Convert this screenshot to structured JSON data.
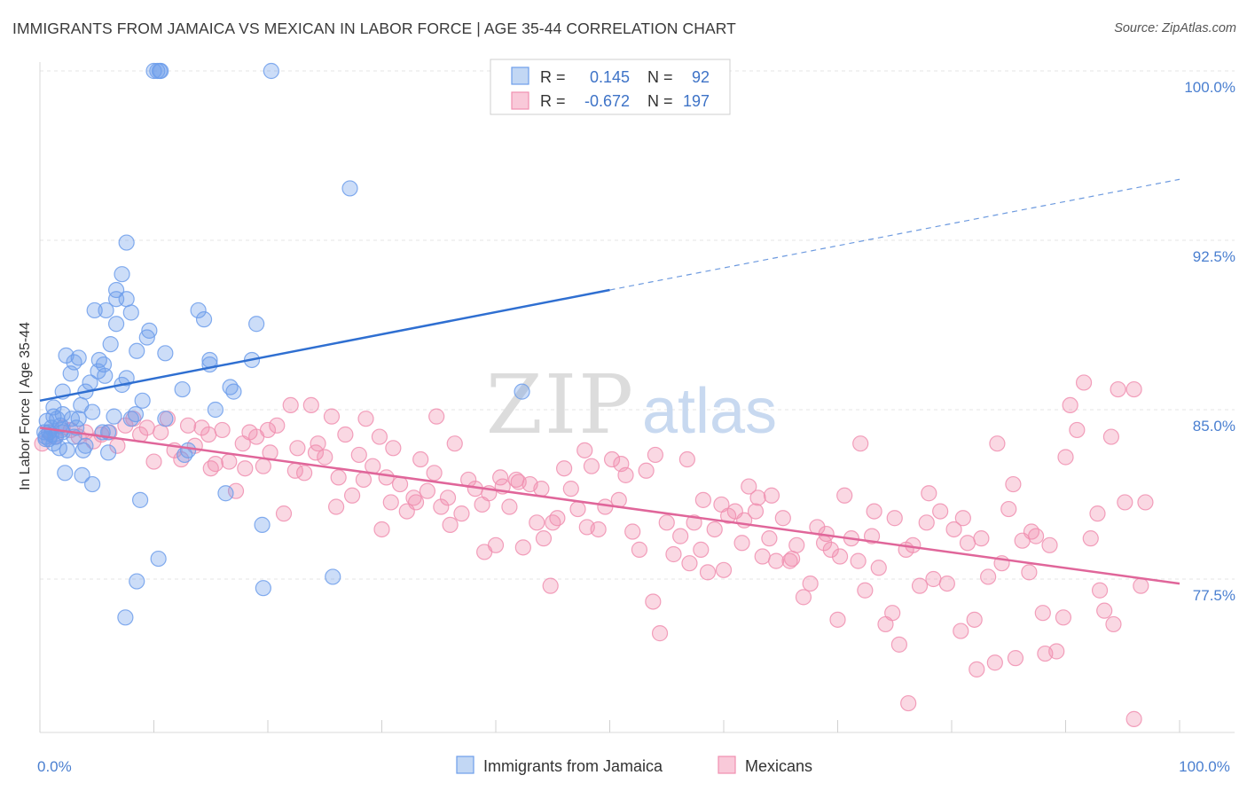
{
  "title": "IMMIGRANTS FROM JAMAICA VS MEXICAN IN LABOR FORCE | AGE 35-44 CORRELATION CHART",
  "source": "Source: ZipAtlas.com",
  "watermark": {
    "zip": "ZIP",
    "atlas": "atlas"
  },
  "chart_data": {
    "type": "scatter",
    "title": "IMMIGRANTS FROM JAMAICA VS MEXICAN IN LABOR FORCE | AGE 35-44 CORRELATION CHART",
    "xlabel": "",
    "ylabel": "In Labor Force | Age 35-44",
    "xlim": [
      0,
      100
    ],
    "ylim": [
      71.0,
      101.0
    ],
    "x_ticks": [
      0,
      100
    ],
    "x_tick_labels": [
      "0.0%",
      "100.0%"
    ],
    "y_ticks": [
      77.5,
      85.0,
      92.5,
      100.0
    ],
    "y_tick_labels": [
      "77.5%",
      "85.0%",
      "92.5%",
      "100.0%"
    ],
    "grid": true,
    "legend_position": "top-center",
    "colors": {
      "jamaica": "#6d9eeb",
      "jamaica_line": "#2f6fd1",
      "mexicans": "#f08fb0",
      "mexicans_line": "#e0669a"
    },
    "legend": [
      {
        "series": "Immigrants from Jamaica",
        "r_label": "R =",
        "r_value": "0.145",
        "n_label": "N =",
        "n_value": "92"
      },
      {
        "series": "Mexicans",
        "r_label": "R =",
        "r_value": "-0.672",
        "n_label": "N =",
        "n_value": "197"
      }
    ],
    "trend_lines": [
      {
        "series": "Immigrants from Jamaica",
        "solid": {
          "x": [
            0,
            50
          ],
          "y": [
            85.4,
            90.3
          ]
        },
        "dashed": {
          "x": [
            50,
            100
          ],
          "y": [
            90.3,
            95.2
          ]
        }
      },
      {
        "series": "Mexicans",
        "solid": {
          "x": [
            0,
            100
          ],
          "y": [
            84.2,
            77.3
          ]
        }
      }
    ],
    "series": [
      {
        "name": "Immigrants from Jamaica",
        "points": [
          [
            10.0,
            100.0
          ],
          [
            10.3,
            100.0
          ],
          [
            10.6,
            100.0
          ],
          [
            10.5,
            100.0
          ],
          [
            20.3,
            100.0
          ],
          [
            27.2,
            94.8
          ],
          [
            7.6,
            92.4
          ],
          [
            7.2,
            91.0
          ],
          [
            6.7,
            90.3
          ],
          [
            6.7,
            89.9
          ],
          [
            7.6,
            89.9
          ],
          [
            4.8,
            89.4
          ],
          [
            5.8,
            89.4
          ],
          [
            8.0,
            89.3
          ],
          [
            13.9,
            89.4
          ],
          [
            14.4,
            89.0
          ],
          [
            19.0,
            88.8
          ],
          [
            6.7,
            88.8
          ],
          [
            9.6,
            88.5
          ],
          [
            9.4,
            88.2
          ],
          [
            6.2,
            87.9
          ],
          [
            8.5,
            87.6
          ],
          [
            11.0,
            87.5
          ],
          [
            14.9,
            87.2
          ],
          [
            18.6,
            87.2
          ],
          [
            2.3,
            87.4
          ],
          [
            3.4,
            87.3
          ],
          [
            5.2,
            87.2
          ],
          [
            5.6,
            87.0
          ],
          [
            14.9,
            87.0
          ],
          [
            3.0,
            87.1
          ],
          [
            2.7,
            86.6
          ],
          [
            5.1,
            86.7
          ],
          [
            5.7,
            86.5
          ],
          [
            7.6,
            86.4
          ],
          [
            4.4,
            86.2
          ],
          [
            7.2,
            86.1
          ],
          [
            12.5,
            85.9
          ],
          [
            16.7,
            86.0
          ],
          [
            2.0,
            85.8
          ],
          [
            4.0,
            85.8
          ],
          [
            17.0,
            85.8
          ],
          [
            42.3,
            85.8
          ],
          [
            1.2,
            85.1
          ],
          [
            15.4,
            85.0
          ],
          [
            1.2,
            84.7
          ],
          [
            2.0,
            84.8
          ],
          [
            1.5,
            84.6
          ],
          [
            3.4,
            84.6
          ],
          [
            8.4,
            84.8
          ],
          [
            11.0,
            84.6
          ],
          [
            8.0,
            84.6
          ],
          [
            1.8,
            84.3
          ],
          [
            3.2,
            84.2
          ],
          [
            1.0,
            84.2
          ],
          [
            0.4,
            84.0
          ],
          [
            0.8,
            84.0
          ],
          [
            0.5,
            83.8
          ],
          [
            1.4,
            83.8
          ],
          [
            3.0,
            83.8
          ],
          [
            5.5,
            84.0
          ],
          [
            6.0,
            84.0
          ],
          [
            0.8,
            83.7
          ],
          [
            1.2,
            83.5
          ],
          [
            4.0,
            83.4
          ],
          [
            0.5,
            83.7
          ],
          [
            1.7,
            83.3
          ],
          [
            2.4,
            83.2
          ],
          [
            3.8,
            83.2
          ],
          [
            6.0,
            83.1
          ],
          [
            12.7,
            83.0
          ],
          [
            13.0,
            83.2
          ],
          [
            2.2,
            82.2
          ],
          [
            3.7,
            82.1
          ],
          [
            4.6,
            81.7
          ],
          [
            16.3,
            81.3
          ],
          [
            8.8,
            81.0
          ],
          [
            19.5,
            79.9
          ],
          [
            10.4,
            78.4
          ],
          [
            8.5,
            77.4
          ],
          [
            19.6,
            77.1
          ],
          [
            25.7,
            77.6
          ],
          [
            7.5,
            75.8
          ],
          [
            2.0,
            84.0
          ],
          [
            1.0,
            83.9
          ],
          [
            4.6,
            84.9
          ],
          [
            2.8,
            84.6
          ],
          [
            0.6,
            84.5
          ],
          [
            1.9,
            84.1
          ],
          [
            6.5,
            84.7
          ],
          [
            3.6,
            85.2
          ],
          [
            9.0,
            85.4
          ]
        ]
      },
      {
        "name": "Mexicans",
        "points": [
          [
            0.2,
            83.5
          ],
          [
            0.8,
            84.0
          ],
          [
            1.3,
            83.8
          ],
          [
            2.0,
            84.2
          ],
          [
            2.7,
            84.1
          ],
          [
            3.4,
            83.8
          ],
          [
            4.0,
            84.0
          ],
          [
            4.7,
            83.6
          ],
          [
            5.4,
            83.9
          ],
          [
            6.1,
            84.0
          ],
          [
            6.8,
            83.4
          ],
          [
            7.5,
            84.3
          ],
          [
            8.2,
            84.6
          ],
          [
            8.8,
            83.9
          ],
          [
            9.4,
            84.2
          ],
          [
            10.0,
            82.7
          ],
          [
            10.6,
            84.0
          ],
          [
            11.2,
            84.6
          ],
          [
            11.8,
            83.2
          ],
          [
            12.4,
            82.8
          ],
          [
            13.0,
            84.3
          ],
          [
            13.6,
            83.4
          ],
          [
            14.2,
            84.2
          ],
          [
            14.8,
            83.9
          ],
          [
            15.4,
            82.6
          ],
          [
            16.0,
            84.1
          ],
          [
            16.6,
            82.7
          ],
          [
            17.2,
            81.4
          ],
          [
            17.8,
            83.5
          ],
          [
            18.4,
            84.0
          ],
          [
            19.0,
            83.8
          ],
          [
            19.6,
            82.5
          ],
          [
            20.2,
            83.1
          ],
          [
            20.8,
            84.3
          ],
          [
            21.4,
            80.4
          ],
          [
            22.0,
            85.2
          ],
          [
            22.6,
            83.3
          ],
          [
            23.2,
            82.2
          ],
          [
            23.8,
            85.2
          ],
          [
            24.4,
            83.5
          ],
          [
            25.0,
            82.9
          ],
          [
            25.6,
            84.7
          ],
          [
            26.2,
            82.0
          ],
          [
            26.8,
            83.9
          ],
          [
            27.4,
            81.2
          ],
          [
            28.0,
            83.0
          ],
          [
            28.6,
            84.6
          ],
          [
            29.2,
            82.5
          ],
          [
            29.8,
            83.8
          ],
          [
            30.4,
            82.0
          ],
          [
            31.0,
            83.3
          ],
          [
            31.6,
            81.7
          ],
          [
            32.2,
            80.5
          ],
          [
            32.8,
            81.1
          ],
          [
            33.4,
            82.8
          ],
          [
            34.0,
            81.4
          ],
          [
            34.6,
            82.2
          ],
          [
            35.2,
            80.7
          ],
          [
            35.8,
            81.1
          ],
          [
            36.4,
            83.5
          ],
          [
            37.0,
            80.4
          ],
          [
            37.6,
            81.9
          ],
          [
            38.2,
            81.5
          ],
          [
            38.8,
            80.8
          ],
          [
            39.4,
            81.3
          ],
          [
            40.0,
            79.0
          ],
          [
            40.6,
            81.6
          ],
          [
            41.2,
            80.7
          ],
          [
            41.8,
            81.9
          ],
          [
            42.4,
            78.9
          ],
          [
            43.0,
            81.7
          ],
          [
            43.6,
            80.0
          ],
          [
            44.2,
            79.3
          ],
          [
            44.8,
            77.2
          ],
          [
            45.4,
            80.2
          ],
          [
            46.0,
            82.4
          ],
          [
            46.6,
            81.5
          ],
          [
            47.2,
            80.6
          ],
          [
            47.8,
            83.2
          ],
          [
            48.4,
            82.5
          ],
          [
            49.0,
            79.7
          ],
          [
            49.6,
            80.7
          ],
          [
            50.2,
            82.8
          ],
          [
            50.8,
            81.0
          ],
          [
            51.4,
            82.1
          ],
          [
            52.0,
            79.6
          ],
          [
            52.6,
            78.8
          ],
          [
            53.2,
            82.3
          ],
          [
            53.8,
            76.5
          ],
          [
            54.4,
            75.1
          ],
          [
            55.0,
            80.0
          ],
          [
            55.6,
            78.6
          ],
          [
            56.2,
            79.4
          ],
          [
            56.8,
            82.8
          ],
          [
            57.4,
            80.0
          ],
          [
            58.0,
            78.8
          ],
          [
            58.6,
            77.8
          ],
          [
            59.2,
            79.7
          ],
          [
            59.8,
            80.8
          ],
          [
            60.4,
            80.3
          ],
          [
            61.0,
            80.5
          ],
          [
            61.6,
            79.1
          ],
          [
            62.2,
            81.6
          ],
          [
            62.8,
            80.5
          ],
          [
            63.4,
            78.5
          ],
          [
            64.0,
            79.3
          ],
          [
            64.6,
            78.3
          ],
          [
            65.2,
            80.2
          ],
          [
            65.8,
            78.3
          ],
          [
            66.4,
            79.0
          ],
          [
            67.0,
            76.7
          ],
          [
            67.6,
            77.3
          ],
          [
            68.2,
            79.8
          ],
          [
            68.8,
            79.1
          ],
          [
            69.4,
            78.8
          ],
          [
            70.0,
            75.7
          ],
          [
            70.6,
            81.2
          ],
          [
            71.2,
            79.3
          ],
          [
            71.8,
            78.3
          ],
          [
            72.4,
            77.0
          ],
          [
            73.0,
            79.4
          ],
          [
            73.6,
            78.0
          ],
          [
            74.2,
            75.5
          ],
          [
            74.8,
            76.0
          ],
          [
            75.4,
            74.6
          ],
          [
            76.0,
            78.8
          ],
          [
            76.6,
            79.0
          ],
          [
            77.2,
            77.2
          ],
          [
            77.8,
            80.0
          ],
          [
            78.4,
            77.5
          ],
          [
            79.0,
            80.5
          ],
          [
            79.6,
            77.3
          ],
          [
            80.2,
            79.7
          ],
          [
            80.8,
            75.2
          ],
          [
            81.4,
            79.1
          ],
          [
            82.0,
            75.7
          ],
          [
            82.6,
            79.3
          ],
          [
            83.2,
            77.6
          ],
          [
            83.8,
            73.8
          ],
          [
            84.4,
            78.2
          ],
          [
            85.0,
            80.6
          ],
          [
            85.6,
            74.0
          ],
          [
            86.2,
            79.2
          ],
          [
            86.8,
            77.8
          ],
          [
            87.4,
            79.4
          ],
          [
            88.0,
            76.0
          ],
          [
            88.6,
            79.0
          ],
          [
            89.2,
            74.3
          ],
          [
            89.8,
            75.8
          ],
          [
            90.4,
            85.2
          ],
          [
            91.0,
            84.1
          ],
          [
            91.6,
            86.2
          ],
          [
            92.2,
            79.3
          ],
          [
            92.8,
            80.4
          ],
          [
            93.4,
            76.1
          ],
          [
            94.0,
            83.8
          ],
          [
            94.6,
            85.9
          ],
          [
            95.2,
            80.9
          ],
          [
            96.0,
            71.3
          ],
          [
            96.6,
            77.2
          ],
          [
            18.0,
            82.4
          ],
          [
            22.4,
            82.3
          ],
          [
            24.2,
            83.1
          ],
          [
            26.0,
            80.7
          ],
          [
            28.4,
            81.9
          ],
          [
            30.0,
            79.7
          ],
          [
            33.0,
            80.9
          ],
          [
            36.0,
            79.9
          ],
          [
            39.0,
            78.7
          ],
          [
            42.0,
            81.8
          ],
          [
            45.0,
            80.0
          ],
          [
            48.0,
            79.8
          ],
          [
            51.0,
            82.6
          ],
          [
            54.0,
            83.0
          ],
          [
            57.0,
            78.2
          ],
          [
            60.0,
            77.9
          ],
          [
            63.0,
            81.1
          ],
          [
            66.0,
            78.4
          ],
          [
            69.0,
            79.5
          ],
          [
            72.0,
            83.5
          ],
          [
            75.0,
            80.2
          ],
          [
            78.0,
            81.3
          ],
          [
            81.0,
            80.2
          ],
          [
            84.0,
            83.5
          ],
          [
            87.0,
            79.6
          ],
          [
            90.0,
            82.9
          ],
          [
            93.0,
            77.0
          ],
          [
            96.0,
            85.9
          ],
          [
            58.2,
            81.0
          ],
          [
            64.2,
            81.2
          ],
          [
            70.2,
            78.5
          ],
          [
            76.2,
            72.0
          ],
          [
            82.2,
            73.5
          ],
          [
            88.2,
            74.2
          ],
          [
            94.2,
            75.5
          ],
          [
            20.0,
            84.1
          ],
          [
            40.4,
            82.0
          ],
          [
            30.8,
            80.9
          ],
          [
            61.8,
            80.1
          ],
          [
            73.2,
            80.5
          ],
          [
            85.4,
            81.7
          ],
          [
            97.0,
            80.9
          ],
          [
            15.0,
            82.4
          ],
          [
            34.8,
            84.7
          ],
          [
            44.0,
            81.5
          ]
        ]
      }
    ]
  },
  "bottom_legend": [
    {
      "label": "Immigrants from Jamaica"
    },
    {
      "label": "Mexicans"
    }
  ]
}
